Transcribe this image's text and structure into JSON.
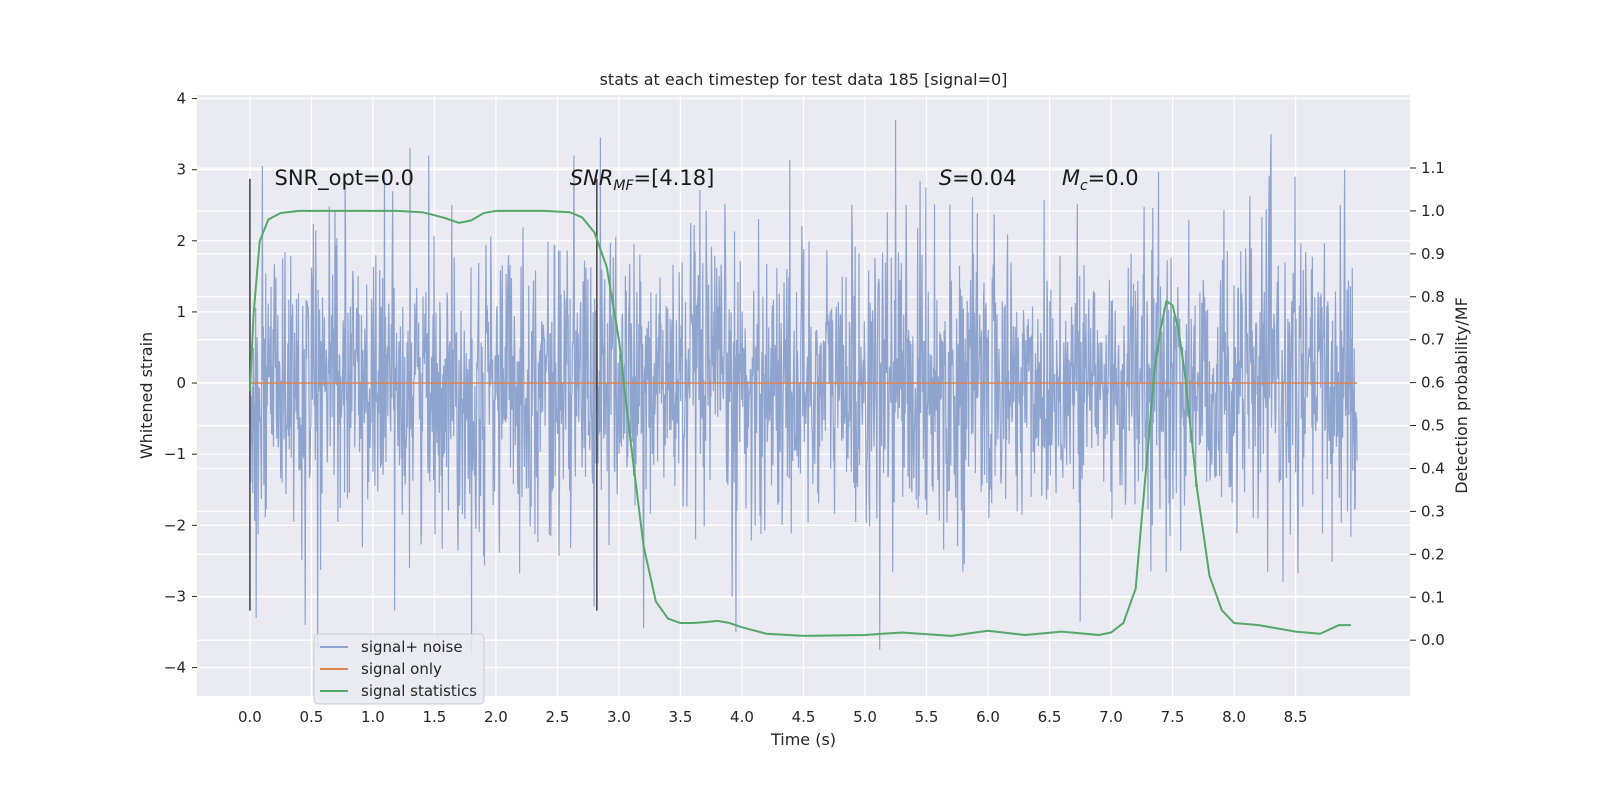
{
  "chart_data": {
    "type": "line",
    "title": "stats at each timestep for test data 185 [signal=0]",
    "xlabel": "Time (s)",
    "ylabel": "Whitened strain",
    "y2label": "Detection probability/MF",
    "xlim": [
      -0.43,
      9.43
    ],
    "ylim": [
      -4.4,
      4.05
    ],
    "y2lim": [
      -0.13,
      1.27
    ],
    "xticks": [
      "0.0",
      "0.5",
      "1.0",
      "1.5",
      "2.0",
      "2.5",
      "3.0",
      "3.5",
      "4.0",
      "4.5",
      "5.0",
      "5.5",
      "6.0",
      "6.5",
      "7.0",
      "7.5",
      "8.0",
      "8.5"
    ],
    "yticks": [
      "−4",
      "−3",
      "−2",
      "−1",
      "0",
      "1",
      "2",
      "3",
      "4"
    ],
    "y2ticks": [
      "0.0",
      "0.1",
      "0.2",
      "0.3",
      "0.4",
      "0.5",
      "0.6",
      "0.7",
      "0.8",
      "0.9",
      "1.0",
      "1.1"
    ],
    "grid": true,
    "legend_position": "lower-left",
    "series": [
      {
        "name": "signal+ noise",
        "color": "#8fa3cf",
        "description": "whitened noise, approx Gaussian unit variance, sampled 0 to 9 s",
        "x_range": [
          0,
          9
        ],
        "sigma": 1.0,
        "peak_values": [
          {
            "x": 0.05,
            "y": -3.3
          },
          {
            "x": 0.1,
            "y": 3.05
          },
          {
            "x": 0.45,
            "y": -3.4
          },
          {
            "x": 0.55,
            "y": -3.75
          },
          {
            "x": 1.3,
            "y": 3.3
          },
          {
            "x": 1.8,
            "y": -3.8
          },
          {
            "x": 2.85,
            "y": 3.45
          },
          {
            "x": 3.2,
            "y": -3.45
          },
          {
            "x": 3.95,
            "y": -3.5
          },
          {
            "x": 5.12,
            "y": -3.75
          },
          {
            "x": 5.25,
            "y": 3.7
          },
          {
            "x": 6.75,
            "y": -3.35
          },
          {
            "x": 8.3,
            "y": 3.5
          },
          {
            "x": 8.9,
            "y": 3.0
          }
        ]
      },
      {
        "name": "signal only",
        "color": "#dd8452",
        "x": [
          0,
          9
        ],
        "y": [
          0,
          0
        ]
      },
      {
        "name": "signal statistics",
        "color": "#55a868",
        "axis": "right",
        "x": [
          0.0,
          0.03,
          0.08,
          0.15,
          0.25,
          0.4,
          0.6,
          0.8,
          1.0,
          1.2,
          1.4,
          1.5,
          1.6,
          1.7,
          1.8,
          1.9,
          2.0,
          2.2,
          2.4,
          2.6,
          2.7,
          2.8,
          2.9,
          3.0,
          3.1,
          3.2,
          3.3,
          3.4,
          3.5,
          3.6,
          3.7,
          3.8,
          3.9,
          4.0,
          4.2,
          4.5,
          5.0,
          5.3,
          5.7,
          6.0,
          6.3,
          6.6,
          6.9,
          7.0,
          7.1,
          7.2,
          7.3,
          7.35,
          7.4,
          7.45,
          7.5,
          7.55,
          7.6,
          7.7,
          7.8,
          7.9,
          8.0,
          8.2,
          8.5,
          8.7,
          8.85,
          8.95
        ],
        "y": [
          0.58,
          0.76,
          0.93,
          0.98,
          0.995,
          1.0,
          1.0,
          1.0,
          1.0,
          1.0,
          0.997,
          0.99,
          0.982,
          0.972,
          0.978,
          0.995,
          1.0,
          1.0,
          1.0,
          0.997,
          0.985,
          0.95,
          0.87,
          0.7,
          0.45,
          0.22,
          0.09,
          0.05,
          0.04,
          0.04,
          0.042,
          0.045,
          0.04,
          0.03,
          0.015,
          0.01,
          0.012,
          0.018,
          0.01,
          0.022,
          0.012,
          0.02,
          0.012,
          0.018,
          0.04,
          0.12,
          0.45,
          0.62,
          0.72,
          0.79,
          0.78,
          0.72,
          0.62,
          0.35,
          0.15,
          0.07,
          0.04,
          0.035,
          0.02,
          0.015,
          0.035,
          0.035
        ]
      }
    ],
    "vertical_lines": [
      {
        "x": 0.0,
        "y_from": -3.2,
        "y_to": 2.87
      },
      {
        "x": 2.82,
        "y_from": -3.2,
        "y_to": 2.87
      }
    ],
    "annotations": [
      {
        "x": 0.2,
        "y": 2.88,
        "parts": [
          {
            "t": "SNR_opt=0.0",
            "style": "normal"
          }
        ]
      },
      {
        "x": 2.6,
        "y": 2.88,
        "parts": [
          {
            "t": "SNR",
            "style": "italic"
          },
          {
            "t": "MF",
            "style": "italic-sub"
          },
          {
            "t": "=[4.18]",
            "style": "normal"
          }
        ]
      },
      {
        "x": 5.6,
        "y": 2.88,
        "parts": [
          {
            "t": "S",
            "style": "italic"
          },
          {
            "t": "=0.04",
            "style": "normal"
          }
        ]
      },
      {
        "x": 6.6,
        "y": 2.88,
        "parts": [
          {
            "t": "M",
            "style": "italic"
          },
          {
            "t": "c",
            "style": "italic-sub"
          },
          {
            "t": "=0.0",
            "style": "normal"
          }
        ]
      }
    ],
    "legend": [
      {
        "label": "signal+ noise",
        "color": "#8fa3cf"
      },
      {
        "label": "signal only",
        "color": "#dd8452"
      },
      {
        "label": "signal statistics",
        "color": "#55a868"
      }
    ]
  },
  "colors": {
    "plot_background": "#eaeaf2",
    "grid": "#ffffff",
    "noise": "#8fa3cf",
    "signal": "#dd8452",
    "stats": "#55a868",
    "marker_line": "#4d4d4d"
  }
}
